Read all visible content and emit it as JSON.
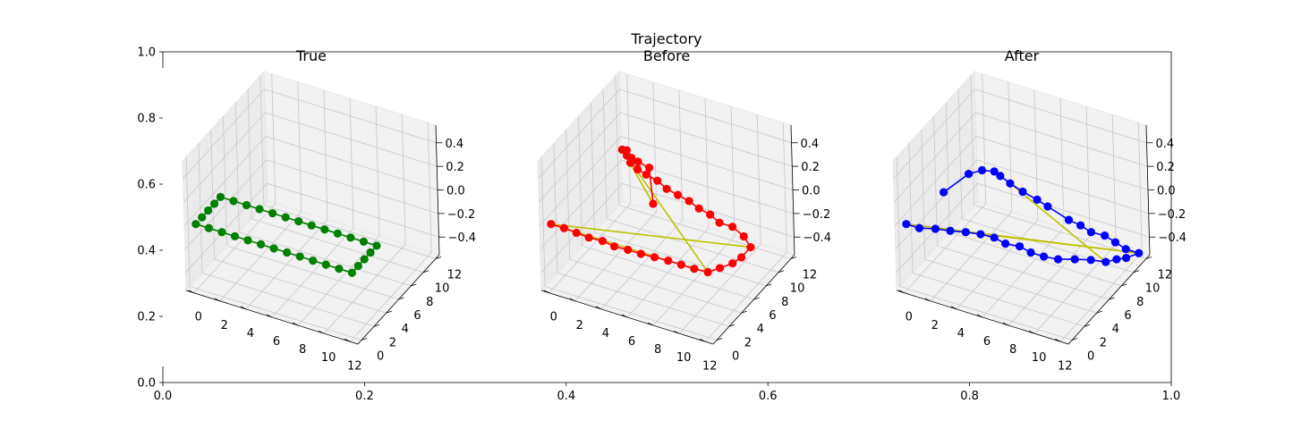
{
  "figure": {
    "suptitle": "Trajectory"
  },
  "chart_data": [
    {
      "type": "axes",
      "role": "background",
      "xlim": [
        0.0,
        1.0
      ],
      "ylim": [
        0.0,
        1.0
      ],
      "xticks": [
        "0.0",
        "0.2",
        "0.4",
        "0.6",
        "0.8",
        "1.0"
      ],
      "yticks": [
        "0.0",
        "0.2",
        "0.4",
        "0.6",
        "0.8",
        "1.0"
      ]
    },
    {
      "type": "line3d",
      "title": "True",
      "xticks": [
        "0",
        "2",
        "4",
        "6",
        "8",
        "10",
        "12"
      ],
      "yticks": [
        "0",
        "2",
        "4",
        "6",
        "8",
        "10",
        "12"
      ],
      "zticks": [
        "−0.4",
        "−0.2",
        "0.0",
        "0.2",
        "0.4"
      ],
      "colors": {
        "series": "#008000"
      },
      "series": [
        {
          "x": [
            0,
            1,
            2,
            3,
            4,
            5,
            6,
            7,
            8,
            9,
            10,
            11,
            12,
            12,
            12,
            12,
            12,
            11,
            10,
            9,
            8,
            7,
            6,
            5,
            4,
            3,
            2,
            1,
            0,
            0,
            0,
            0
          ],
          "y": [
            0,
            0,
            0,
            0,
            0,
            0,
            0,
            0,
            0,
            0,
            0,
            0,
            0,
            1,
            2,
            3,
            4,
            4,
            4,
            4,
            4,
            4,
            4,
            4,
            4,
            4,
            4,
            4,
            4,
            3,
            2,
            1
          ],
          "z": [
            0,
            0,
            0,
            0,
            0,
            0,
            0,
            0,
            0,
            0,
            0,
            0,
            0,
            0,
            0,
            0,
            0,
            0,
            0,
            0,
            0,
            0,
            0,
            0,
            0,
            0,
            0,
            0,
            0,
            0,
            0,
            0
          ]
        }
      ],
      "loop_edges": []
    },
    {
      "type": "line3d",
      "title": "Before",
      "xticks": [
        "0",
        "2",
        "4",
        "6",
        "8",
        "10",
        "12"
      ],
      "yticks": [
        "0",
        "2",
        "4",
        "6",
        "8",
        "10",
        "12"
      ],
      "zticks": [
        "−0.4",
        "−0.2",
        "0.0",
        "0.2",
        "0.4"
      ],
      "colors": {
        "series": "#ff0000",
        "edges": "#bfbf00"
      },
      "series": [
        {
          "x": [
            0,
            1,
            2,
            3,
            4,
            5,
            6,
            7,
            8,
            9,
            10,
            11,
            12,
            12.5,
            13,
            13.2,
            13.2,
            12.2,
            11,
            10,
            9,
            8,
            7,
            6,
            5,
            4,
            3,
            2.2,
            1.4,
            0.8,
            0.2,
            0.5,
            1.2,
            1.8,
            2.8,
            5
          ],
          "y": [
            0,
            0,
            -0.1,
            -0.2,
            -0.1,
            -0.3,
            -0.2,
            -0.2,
            -0.1,
            0,
            0,
            0,
            0.1,
            1,
            2,
            3,
            4.5,
            5.5,
            6.2,
            6.2,
            6.8,
            7.1,
            7.6,
            7.9,
            8.2,
            8.8,
            9.1,
            9.4,
            9.9,
            10.6,
            11.1,
            11.2,
            10.5,
            10.3,
            10,
            6
          ],
          "z": [
            0,
            0,
            0,
            0,
            0,
            0,
            0,
            0,
            0,
            0,
            0,
            0,
            0,
            0,
            0,
            0,
            0,
            0,
            0,
            0,
            0,
            0,
            0,
            0,
            0,
            0,
            0,
            0,
            0,
            0,
            0,
            0,
            0,
            0,
            0,
            0
          ]
        }
      ],
      "loop_edges": [
        [
          0,
          11
        ],
        [
          0,
          16
        ],
        [
          30,
          12
        ],
        [
          30,
          35
        ]
      ]
    },
    {
      "type": "line3d",
      "title": "After",
      "xticks": [
        "0",
        "2",
        "4",
        "6",
        "8",
        "10",
        "12"
      ],
      "yticks": [
        "0",
        "2",
        "4",
        "6",
        "8",
        "10",
        "12"
      ],
      "zticks": [
        "−0.4",
        "−0.2",
        "0.0",
        "0.2",
        "0.4"
      ],
      "colors": {
        "series": "#0000ff",
        "edges": "#bfbf00"
      },
      "series": [
        {
          "x": [
            0,
            1,
            2,
            3,
            4,
            5,
            6,
            7,
            8,
            9,
            10,
            11,
            12,
            13,
            14,
            14.5,
            15,
            15.5,
            14.5,
            13.5,
            12.5,
            11.5,
            10.5,
            9.5,
            7.5,
            6.5,
            5.2,
            4,
            3,
            2.4,
            1.6,
            1,
            0.5
          ],
          "y": [
            0,
            0,
            0.5,
            0.8,
            1.2,
            1.5,
            1.6,
            1.3,
            1.5,
            1.2,
            1.2,
            1.4,
            2,
            2.5,
            2.8,
            3.5,
            4,
            5,
            5,
            5.4,
            5.8,
            5.7,
            6.1,
            6.3,
            7.1,
            7.5,
            7.9,
            8.4,
            8.9,
            9.2,
            8.9,
            8,
            5
          ],
          "z": [
            0,
            0,
            0,
            0,
            0,
            0,
            0,
            0,
            0,
            0,
            0,
            0,
            0,
            0,
            0,
            0,
            0,
            0,
            0,
            0,
            0,
            0,
            0,
            0,
            0,
            0,
            0,
            0,
            0,
            0,
            0,
            0,
            0
          ]
        }
      ],
      "loop_edges": [
        [
          0,
          17
        ],
        [
          4,
          17
        ],
        [
          14,
          27
        ]
      ]
    }
  ]
}
